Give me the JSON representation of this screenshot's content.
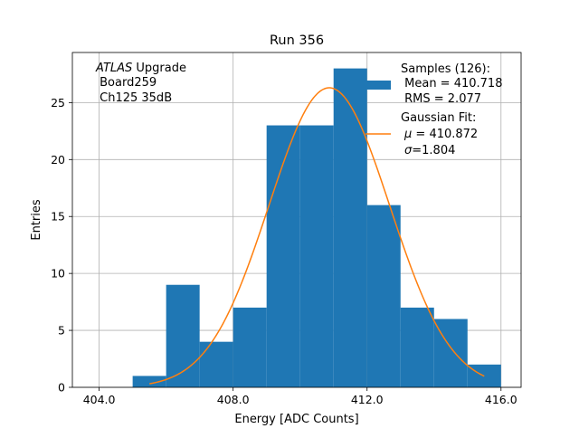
{
  "chart_data": {
    "type": "bar",
    "title": "Run 356",
    "xlabel": "Energy [ADC Counts]",
    "ylabel": "Entries",
    "xlim": [
      403.2,
      416.6
    ],
    "ylim": [
      0,
      29.4
    ],
    "grid": true,
    "x_ticks": [
      404,
      408,
      412,
      416
    ],
    "x_tick_labels": [
      "404.0",
      "408.0",
      "412.0",
      "416.0"
    ],
    "y_ticks": [
      0,
      5,
      10,
      15,
      20,
      25
    ],
    "y_tick_labels": [
      "0",
      "5",
      "10",
      "15",
      "20",
      "25"
    ],
    "colors": {
      "histogram": "#1f77b4",
      "fit": "#ff7f0e",
      "grid": "#b0b0b0"
    },
    "histogram": {
      "name": "Samples (126)",
      "bins": [
        {
          "x0": 405,
          "x1": 406,
          "count": 1
        },
        {
          "x0": 406,
          "x1": 407,
          "count": 9
        },
        {
          "x0": 407,
          "x1": 408,
          "count": 4
        },
        {
          "x0": 408,
          "x1": 409,
          "count": 7
        },
        {
          "x0": 409,
          "x1": 410,
          "count": 23
        },
        {
          "x0": 410,
          "x1": 411,
          "count": 23
        },
        {
          "x0": 411,
          "x1": 412,
          "count": 28
        },
        {
          "x0": 412,
          "x1": 413,
          "count": 16
        },
        {
          "x0": 413,
          "x1": 414,
          "count": 7
        },
        {
          "x0": 414,
          "x1": 415,
          "count": 6
        },
        {
          "x0": 415,
          "x1": 416,
          "count": 2
        }
      ]
    },
    "fit": {
      "name": "Gaussian Fit",
      "type": "gaussian",
      "mu": 410.872,
      "sigma": 1.804,
      "amplitude": 26.3,
      "x_range": [
        405.5,
        415.5
      ]
    },
    "annotation": {
      "italic": "ATLAS",
      "rest": " Upgrade",
      "line2": " Board259",
      "line3": " Ch125 35dB"
    },
    "legend": {
      "position": "top-right",
      "samples_line1": "Samples (126):",
      "samples_line2": " Mean = 410.718",
      "samples_line3": " RMS = 2.077",
      "fit_line1": "Gaussian Fit:",
      "fit_mu_symbol": "μ",
      "fit_mu_value": " = 410.872",
      "fit_sigma_symbol": "σ",
      "fit_sigma_value": "=1.804"
    }
  }
}
